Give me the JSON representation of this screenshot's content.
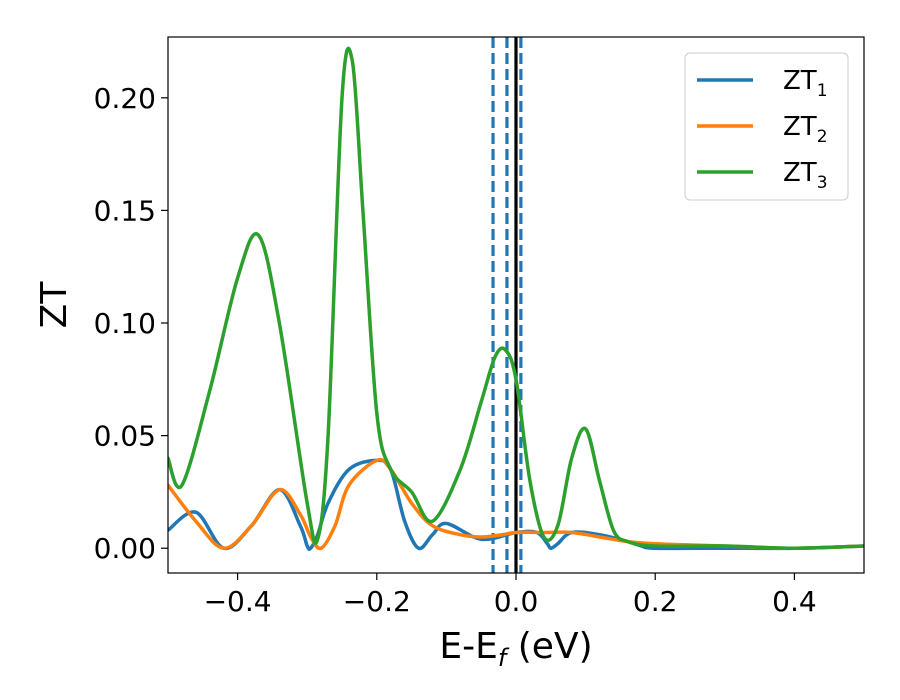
{
  "chart_data": {
    "type": "line",
    "xlabel": "E-E",
    "xlabel_sub": "f",
    "xlabel_unit": " (eV)",
    "ylabel": "ZT",
    "xlim": [
      -0.5,
      0.5
    ],
    "ylim": [
      -0.011,
      0.227
    ],
    "xticks": [
      -0.4,
      -0.2,
      0.0,
      0.2,
      0.4
    ],
    "xtick_labels": [
      "−0.4",
      "−0.2",
      "0.0",
      "0.2",
      "0.4"
    ],
    "yticks": [
      0.0,
      0.05,
      0.1,
      0.15,
      0.2
    ],
    "ytick_labels": [
      "0.00",
      "0.05",
      "0.10",
      "0.15",
      "0.20"
    ],
    "grid": false,
    "legend_position": "top-right",
    "reference_lines": [
      {
        "x": -0.033,
        "style": "dashed",
        "color": "#1f77b4"
      },
      {
        "x": -0.013,
        "style": "dashed",
        "color": "#1f77b4"
      },
      {
        "x": 0.007,
        "style": "dashed",
        "color": "#1f77b4"
      },
      {
        "x": 0.0,
        "style": "solid",
        "color": "#000000"
      }
    ],
    "series": [
      {
        "name": "ZT",
        "sub": "1",
        "color": "#1f77b4",
        "x": [
          -0.5,
          -0.46,
          -0.42,
          -0.38,
          -0.34,
          -0.31,
          -0.3,
          -0.295,
          -0.285,
          -0.27,
          -0.24,
          -0.2,
          -0.18,
          -0.16,
          -0.14,
          -0.12,
          -0.1,
          -0.05,
          0.0,
          0.03,
          0.045,
          0.05,
          0.06,
          0.08,
          0.12,
          0.16,
          0.18,
          0.2,
          0.3,
          0.4,
          0.5
        ],
        "y": [
          0.008,
          0.016,
          0.0,
          0.01,
          0.026,
          0.01,
          0.001,
          0.0,
          0.006,
          0.02,
          0.035,
          0.039,
          0.035,
          0.012,
          0.0,
          0.006,
          0.011,
          0.004,
          0.007,
          0.007,
          0.002,
          0.0,
          0.002,
          0.007,
          0.006,
          0.003,
          0.001,
          0.0,
          0.0,
          0.0,
          0.001
        ]
      },
      {
        "name": "ZT",
        "sub": "2",
        "color": "#ff7f0e",
        "x": [
          -0.5,
          -0.46,
          -0.42,
          -0.38,
          -0.34,
          -0.31,
          -0.295,
          -0.28,
          -0.26,
          -0.24,
          -0.2,
          -0.18,
          -0.15,
          -0.12,
          -0.08,
          -0.05,
          -0.02,
          0.0,
          0.04,
          0.08,
          0.12,
          0.16,
          0.2,
          0.3,
          0.4,
          0.5
        ],
        "y": [
          0.028,
          0.012,
          0.0,
          0.01,
          0.026,
          0.015,
          0.005,
          0.0,
          0.01,
          0.028,
          0.039,
          0.035,
          0.02,
          0.01,
          0.006,
          0.005,
          0.006,
          0.007,
          0.007,
          0.007,
          0.005,
          0.003,
          0.002,
          0.001,
          0.0,
          0.001
        ]
      },
      {
        "name": "ZT",
        "sub": "3",
        "color": "#2ca02c",
        "x": [
          -0.5,
          -0.48,
          -0.44,
          -0.4,
          -0.37,
          -0.34,
          -0.3,
          -0.285,
          -0.27,
          -0.25,
          -0.235,
          -0.22,
          -0.2,
          -0.18,
          -0.15,
          -0.12,
          -0.08,
          -0.05,
          -0.03,
          -0.015,
          0.0,
          0.02,
          0.04,
          0.06,
          0.08,
          0.1,
          0.12,
          0.14,
          0.16,
          0.2,
          0.3,
          0.4,
          0.5
        ],
        "y": [
          0.04,
          0.028,
          0.07,
          0.12,
          0.139,
          0.1,
          0.02,
          0.004,
          0.05,
          0.2,
          0.216,
          0.15,
          0.06,
          0.035,
          0.025,
          0.012,
          0.035,
          0.065,
          0.085,
          0.088,
          0.075,
          0.03,
          0.005,
          0.01,
          0.04,
          0.053,
          0.03,
          0.008,
          0.003,
          0.001,
          0.001,
          0.0,
          0.001
        ]
      }
    ]
  }
}
